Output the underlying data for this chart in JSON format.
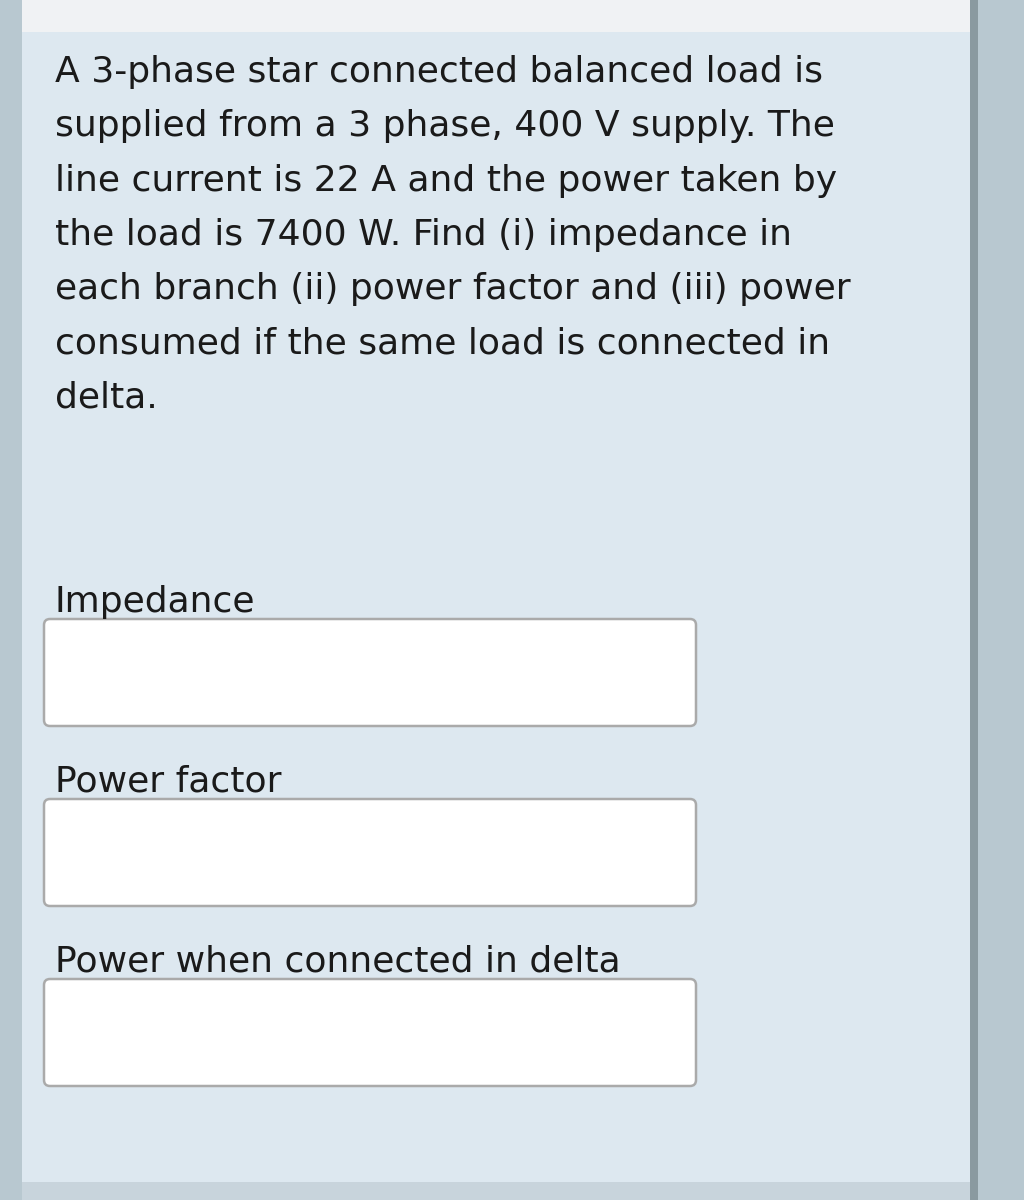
{
  "bg_color": "#dde8f0",
  "outer_left_color": "#c5d5dd",
  "outer_right_color": "#c5d5dd",
  "white_top_color": "#f5f5f5",
  "text_color": "#1a1a1a",
  "box_bg_color": "#ffffff",
  "box_border_color": "#aaaaaa",
  "right_strip_color": "#b0bec5",
  "question_text": "A 3-phase star connected balanced load is\nsupplied from a 3 phase, 400 V supply. The\nline current is 22 A and the power taken by\nthe load is 7400 W. Find (i) impedance in\neach branch (ii) power factor and (iii) power\nconsumed if the same load is connected in\ndelta.",
  "label1": "Impedance",
  "label2": "Power factor",
  "label3": "Power when connected in delta",
  "font_size_question": 26,
  "font_size_label": 26
}
